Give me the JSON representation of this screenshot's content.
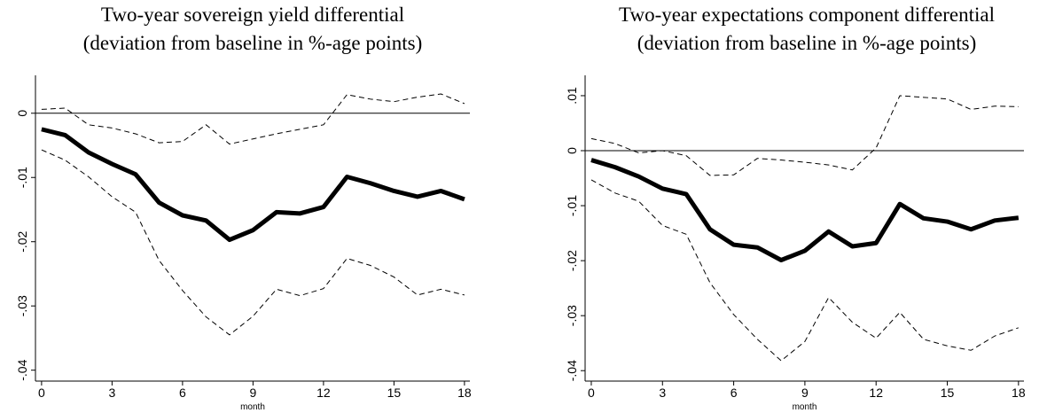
{
  "chart_data": [
    {
      "type": "line",
      "title": "Two-year sovereign yield differential",
      "subtitle": "(deviation from baseline in %-age points)",
      "x_label": "month",
      "x": [
        0,
        1,
        2,
        3,
        4,
        5,
        6,
        7,
        8,
        9,
        10,
        11,
        12,
        13,
        14,
        15,
        16,
        17,
        18
      ],
      "xlim": [
        -0.26,
        18.23
      ],
      "xticks": [
        0,
        3,
        6,
        9,
        12,
        15,
        18
      ],
      "ylim": [
        -0.0417,
        0.0059
      ],
      "yticks": [
        {
          "value": -0.04,
          "label": "-.04"
        },
        {
          "value": -0.03,
          "label": "-.03"
        },
        {
          "value": -0.02,
          "label": "-.02"
        },
        {
          "value": -0.01,
          "label": "-.01"
        },
        0
      ],
      "hline": 0,
      "series": [
        {
          "color": "#000000",
          "style": "solid",
          "values": [
            -0.0025,
            -0.0034,
            -0.0061,
            -0.0079,
            -0.0095,
            -0.0139,
            -0.0159,
            -0.0167,
            -0.0197,
            -0.0182,
            -0.0154,
            -0.0156,
            -0.0146,
            -0.0099,
            -0.0109,
            -0.0121,
            -0.013,
            -0.0121,
            -0.0134
          ]
        },
        {
          "color": "#000000",
          "style": "dashed",
          "values": [
            0.0006,
            0.0008,
            -0.0018,
            -0.0023,
            -0.0032,
            -0.0046,
            -0.0044,
            -0.0018,
            -0.0048,
            -0.004,
            -0.0032,
            -0.0025,
            -0.0018,
            0.0029,
            0.0022,
            0.0018,
            0.0025,
            0.003,
            0.0015
          ]
        },
        {
          "color": "#000000",
          "style": "dashed",
          "values": [
            -0.0057,
            -0.0073,
            -0.0099,
            -0.013,
            -0.0154,
            -0.0229,
            -0.0276,
            -0.0317,
            -0.0345,
            -0.0316,
            -0.0274,
            -0.0284,
            -0.0273,
            -0.0226,
            -0.0237,
            -0.0255,
            -0.0283,
            -0.0274,
            -0.0283
          ]
        }
      ]
    },
    {
      "type": "line",
      "title": "Two-year expectations component differential",
      "subtitle": "(deviation from baseline in %-age points)",
      "x_label": "month",
      "x": [
        0,
        1,
        2,
        3,
        4,
        5,
        6,
        7,
        8,
        9,
        10,
        11,
        12,
        13,
        14,
        15,
        16,
        17,
        18
      ],
      "xlim": [
        -0.26,
        18.23
      ],
      "xticks": [
        0,
        3,
        6,
        9,
        12,
        15,
        18
      ],
      "ylim": [
        -0.0419,
        0.0137
      ],
      "yticks": [
        {
          "value": -0.04,
          "label": "-.04"
        },
        {
          "value": -0.03,
          "label": "-.03"
        },
        {
          "value": -0.02,
          "label": "-.02"
        },
        {
          "value": -0.01,
          "label": "-.01"
        },
        0,
        {
          "value": 0.01,
          "label": ".01"
        }
      ],
      "hline": 0,
      "series": [
        {
          "color": "#000000",
          "style": "solid",
          "values": [
            -0.0017,
            -0.003,
            -0.0047,
            -0.0069,
            -0.0079,
            -0.0143,
            -0.0171,
            -0.0176,
            -0.0199,
            -0.0182,
            -0.0147,
            -0.0174,
            -0.0168,
            -0.0097,
            -0.0123,
            -0.0129,
            -0.0143,
            -0.0127,
            -0.0122
          ]
        },
        {
          "color": "#000000",
          "style": "dashed",
          "values": [
            0.0022,
            0.0013,
            -0.0004,
            0.0,
            -0.0009,
            -0.0045,
            -0.0044,
            -0.0014,
            -0.0017,
            -0.0021,
            -0.0026,
            -0.0035,
            0.0005,
            0.01,
            0.0097,
            0.0094,
            0.0075,
            0.0081,
            0.008
          ]
        },
        {
          "color": "#000000",
          "style": "dashed",
          "values": [
            -0.0053,
            -0.0077,
            -0.0092,
            -0.0136,
            -0.0152,
            -0.024,
            -0.0298,
            -0.0343,
            -0.0382,
            -0.0347,
            -0.0267,
            -0.0312,
            -0.0341,
            -0.0294,
            -0.0343,
            -0.0355,
            -0.0363,
            -0.0337,
            -0.0322
          ]
        }
      ]
    }
  ]
}
